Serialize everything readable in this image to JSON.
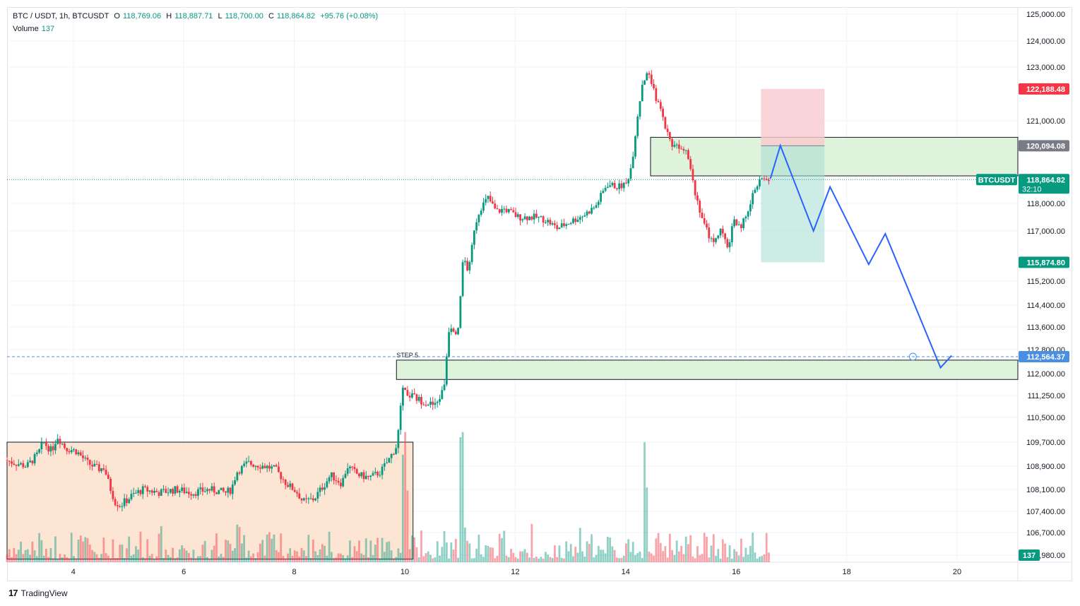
{
  "header": {
    "symbol": "BTC / USDT, 1h, BTCUSDT",
    "open_label": "O",
    "open": "118,769.06",
    "high_label": "H",
    "high": "118,887.71",
    "low_label": "L",
    "low": "118,700.00",
    "close_label": "C",
    "close": "118,864.82",
    "change": "+95.76 (+0.08%)",
    "volume_label": "Volume",
    "volume": "137"
  },
  "footer": {
    "brand": "TradingView",
    "logo": "17"
  },
  "colors": {
    "up": "#089981",
    "down": "#f23645",
    "drawing": "#2962ff",
    "alert": "#4a90e2"
  },
  "chart_data": {
    "type": "candlestick",
    "title": "BTC / USDT, 1h, BTCUSDT",
    "x_ticks": [
      "4",
      "6",
      "8",
      "10",
      "12",
      "14",
      "16",
      "18",
      "20"
    ],
    "x_tick_days": [
      4,
      6,
      8,
      10,
      12,
      14,
      16,
      18,
      20
    ],
    "x_range": [
      2.8,
      21.1
    ],
    "price_ticks": [
      "125,000.00",
      "124,000.00",
      "123,000.00",
      "121,000.00",
      "118,000.00",
      "117,000.00",
      "115,200.00",
      "114,400.00",
      "113,600.00",
      "112,800.00",
      "112,000.00",
      "111,250.00",
      "110,500.00",
      "109,700.00",
      "108,900.00",
      "108,100.00",
      "107,400.00",
      "106,700.00",
      "105,980.00"
    ],
    "price_tick_values": [
      125000,
      124000,
      123000,
      121000,
      118000,
      117000,
      115200,
      114400,
      113600,
      112800,
      112000,
      111250,
      110500,
      109700,
      108900,
      108100,
      107400,
      106700,
      105980
    ],
    "price_labels": [
      {
        "text": "122,188.48",
        "value": 122188.48,
        "color": "#f23645"
      },
      {
        "text": "120,094.08",
        "value": 120094.08,
        "color": "#787b86"
      },
      {
        "text": "118,864.82",
        "value": 118864.82,
        "color": "#089981",
        "tag": "BTCUSDT",
        "sub": "32:10"
      },
      {
        "text": "115,874.80",
        "value": 115874.8,
        "color": "#089981"
      },
      {
        "text": "112,564.37",
        "value": 112564.37,
        "color": "#4a90e2"
      }
    ],
    "volume_label": "137",
    "price_path": [
      [
        2.8,
        109100
      ],
      [
        3.0,
        109000
      ],
      [
        3.2,
        108900
      ],
      [
        3.4,
        109300
      ],
      [
        3.5,
        109700
      ],
      [
        3.65,
        109400
      ],
      [
        3.75,
        109900
      ],
      [
        3.9,
        109500
      ],
      [
        4.1,
        109400
      ],
      [
        4.3,
        109000
      ],
      [
        4.5,
        108800
      ],
      [
        4.6,
        108850
      ],
      [
        4.7,
        108200
      ],
      [
        4.8,
        107700
      ],
      [
        4.9,
        107600
      ],
      [
        5.1,
        107900
      ],
      [
        5.3,
        108100
      ],
      [
        5.6,
        108000
      ],
      [
        5.9,
        108100
      ],
      [
        6.2,
        108000
      ],
      [
        6.5,
        108100
      ],
      [
        6.8,
        108000
      ],
      [
        6.9,
        108100
      ],
      [
        7.0,
        108700
      ],
      [
        7.2,
        109000
      ],
      [
        7.5,
        108900
      ],
      [
        7.7,
        108800
      ],
      [
        7.9,
        108300
      ],
      [
        8.1,
        108000
      ],
      [
        8.2,
        107700
      ],
      [
        8.4,
        107800
      ],
      [
        8.6,
        108300
      ],
      [
        8.7,
        108600
      ],
      [
        8.9,
        108300
      ],
      [
        9.0,
        108900
      ],
      [
        9.2,
        108600
      ],
      [
        9.4,
        108500
      ],
      [
        9.6,
        108700
      ],
      [
        9.75,
        109100
      ],
      [
        9.9,
        109600
      ],
      [
        10.0,
        111400
      ],
      [
        10.3,
        111100
      ],
      [
        10.6,
        110900
      ],
      [
        10.75,
        111500
      ],
      [
        10.85,
        113700
      ],
      [
        11.0,
        113400
      ],
      [
        11.1,
        116100
      ],
      [
        11.2,
        115500
      ],
      [
        11.3,
        117100
      ],
      [
        11.4,
        117800
      ],
      [
        11.55,
        118200
      ],
      [
        11.7,
        117700
      ],
      [
        11.85,
        117800
      ],
      [
        12.1,
        117500
      ],
      [
        12.4,
        117500
      ],
      [
        12.6,
        117400
      ],
      [
        12.8,
        117100
      ],
      [
        13.0,
        117300
      ],
      [
        13.3,
        117600
      ],
      [
        13.5,
        117900
      ],
      [
        13.7,
        118700
      ],
      [
        13.9,
        118600
      ],
      [
        14.05,
        118700
      ],
      [
        14.15,
        119400
      ],
      [
        14.25,
        121100
      ],
      [
        14.35,
        122500
      ],
      [
        14.45,
        122700
      ],
      [
        14.6,
        121800
      ],
      [
        14.75,
        120900
      ],
      [
        14.85,
        120200
      ],
      [
        15.0,
        120100
      ],
      [
        15.15,
        120000
      ],
      [
        15.3,
        118400
      ],
      [
        15.45,
        117300
      ],
      [
        15.6,
        116600
      ],
      [
        15.75,
        117000
      ],
      [
        15.9,
        116400
      ],
      [
        16.0,
        117500
      ],
      [
        16.1,
        117100
      ],
      [
        16.25,
        117600
      ],
      [
        16.4,
        118700
      ],
      [
        16.5,
        118850
      ],
      [
        16.6,
        118864.82
      ]
    ],
    "forecast_path": [
      [
        16.62,
        118900
      ],
      [
        16.8,
        120100
      ],
      [
        17.4,
        117000
      ],
      [
        17.7,
        118600
      ],
      [
        18.4,
        115800
      ],
      [
        18.7,
        116900
      ],
      [
        19.7,
        112200
      ],
      [
        19.9,
        112600
      ]
    ],
    "zones": [
      {
        "kind": "supply",
        "from_day": 14.45,
        "to_day": 21.1,
        "low": 119000,
        "high": 120400,
        "color": "#d8f0d6"
      },
      {
        "kind": "demand",
        "label": "STEP 5",
        "from_day": 9.85,
        "to_day": 21.1,
        "low": 111800,
        "high": 112450,
        "color": "#d8f0d6"
      },
      {
        "kind": "range",
        "from_day": 2.8,
        "to_day": 10.15,
        "low": 105850,
        "high": 109700,
        "color": "#fde1cd"
      }
    ],
    "position": {
      "from_day": 16.45,
      "to_day": 17.6,
      "stop": 122188.48,
      "entry": 120094.08,
      "target": 115874.8
    },
    "alert_price": 112564.37,
    "alert_day": 19.2
  }
}
